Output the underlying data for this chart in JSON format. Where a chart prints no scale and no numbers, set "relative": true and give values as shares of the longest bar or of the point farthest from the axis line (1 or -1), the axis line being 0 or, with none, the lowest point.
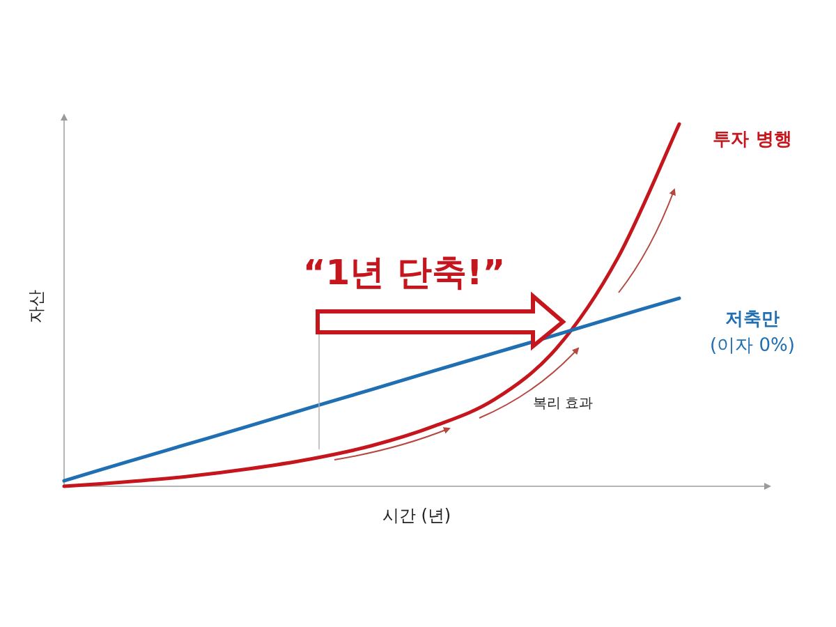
{
  "chart_data": {
    "type": "line",
    "relative": true,
    "xlabel": "시간 (년)",
    "ylabel": "자산",
    "categories": [
      null,
      null,
      null,
      null,
      null,
      null,
      null,
      null,
      null,
      null,
      null
    ],
    "series": [
      {
        "name": "투자 병행",
        "color": "#c4161c",
        "values": [
          0,
          0.012,
          0.027,
          0.048,
          0.075,
          0.112,
          0.165,
          0.24,
          0.38,
          0.63,
          1
        ]
      },
      {
        "name": "저축만 (이자 0%)",
        "color": "#1f6fb2",
        "values": [
          0.015,
          0.066,
          0.116,
          0.166,
          0.217,
          0.267,
          0.318,
          0.368,
          0.418,
          0.469,
          0.519
        ]
      }
    ],
    "annotations": [
      "“1년 단축!”",
      "복리 효과"
    ],
    "legend": false,
    "grid": false,
    "marker": "none",
    "line_style": "solid"
  }
}
